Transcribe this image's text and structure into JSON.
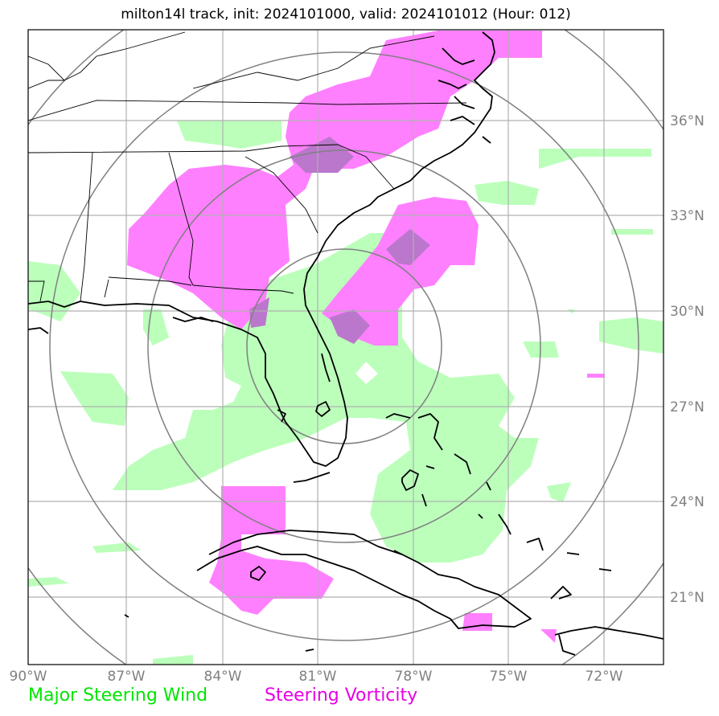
{
  "title": "milton14l track, init: 2024101000, valid: 2024101012 (Hour: 012)",
  "legend": {
    "wind_label": "Major Steering Wind",
    "vorticity_label": "Steering Vorticity",
    "wind_color": "#00ff00",
    "vorticity_color": "#ff00ff"
  },
  "axes": {
    "lon_labels": [
      "90°W",
      "87°W",
      "84°W",
      "81°W",
      "78°W",
      "75°W",
      "72°W"
    ],
    "lat_labels": [
      "36°N",
      "33°N",
      "30°N",
      "27°N",
      "24°N",
      "21°N"
    ]
  },
  "colors": {
    "wind_fill": "#bbffbb",
    "vorticity_fill": "#ff80ff",
    "overlap_fill": "#bb77cc",
    "range_rings": "#808080",
    "grid": "#b0b0b0",
    "coast": "#000000"
  }
}
